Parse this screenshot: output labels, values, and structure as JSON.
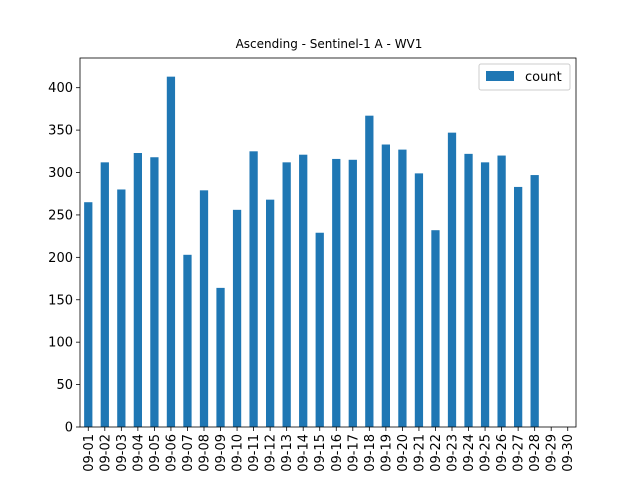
{
  "chart_data": {
    "type": "bar",
    "title": "Ascending - Sentinel-1 A - WV1",
    "xlabel": "",
    "ylabel": "",
    "categories": [
      "09-01",
      "09-02",
      "09-03",
      "09-04",
      "09-05",
      "09-06",
      "09-07",
      "09-08",
      "09-09",
      "09-10",
      "09-11",
      "09-12",
      "09-13",
      "09-14",
      "09-15",
      "09-16",
      "09-17",
      "09-18",
      "09-19",
      "09-20",
      "09-21",
      "09-22",
      "09-23",
      "09-24",
      "09-25",
      "09-26",
      "09-27",
      "09-28",
      "09-29",
      "09-30"
    ],
    "series": [
      {
        "name": "count",
        "color": "#1f77b4",
        "values": [
          265,
          312,
          280,
          323,
          318,
          413,
          203,
          279,
          164,
          256,
          325,
          268,
          312,
          321,
          229,
          316,
          315,
          367,
          333,
          327,
          299,
          232,
          347,
          322,
          312,
          320,
          283,
          297,
          0,
          0
        ]
      }
    ],
    "ylim": [
      0,
      435
    ],
    "yticks": [
      0,
      50,
      100,
      150,
      200,
      250,
      300,
      350,
      400
    ],
    "grid": false,
    "legend_position": "top-right"
  }
}
